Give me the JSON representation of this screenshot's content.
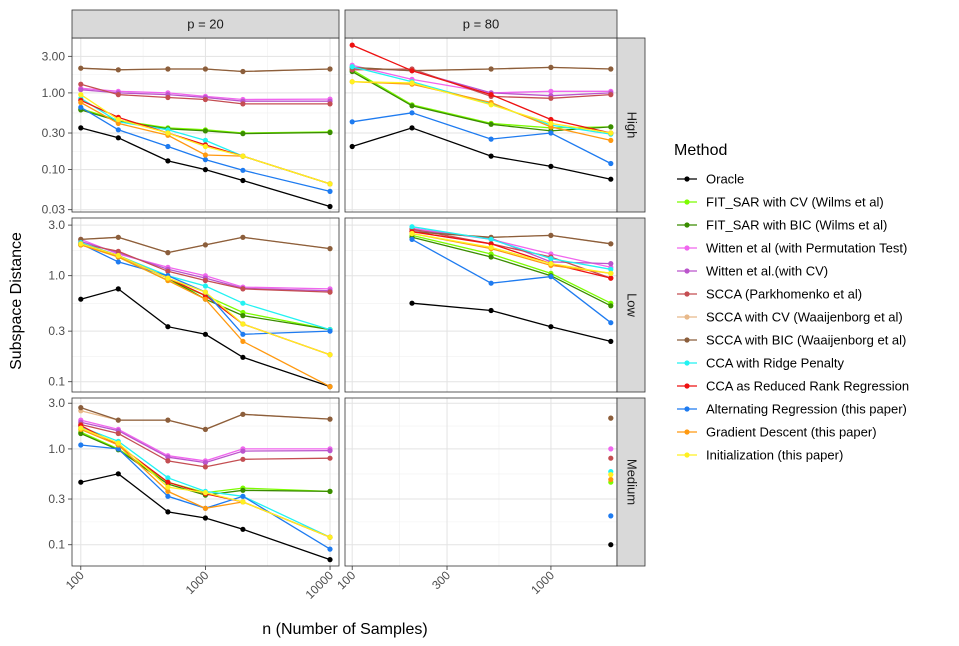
{
  "chart_data": {
    "type": "line",
    "xlabel": "n (Number of Samples)",
    "ylabel": "Subspace Distance",
    "x_scale": "log",
    "y_scale": "log",
    "legend_title": "Method",
    "legend_position": "right",
    "grid": true,
    "column_labels": [
      "p = 20",
      "p = 80"
    ],
    "row_labels": [
      "High",
      "Low",
      "Medium"
    ],
    "methods": [
      {
        "name": "Oracle",
        "color": "#000000"
      },
      {
        "name": "FIT_SAR with CV (Wilms et al)",
        "color": "#7CFC00"
      },
      {
        "name": "FIT_SAR with BIC (Wilms et al)",
        "color": "#3A8C00"
      },
      {
        "name": "Witten et al (with Permutation Test)",
        "color": "#F066EE"
      },
      {
        "name": "Witten et al.(with CV)",
        "color": "#BB55CC"
      },
      {
        "name": "SCCA (Parkhomenko et al)",
        "color": "#C44E52"
      },
      {
        "name": "SCCA with CV (Waaijenborg et al)",
        "color": "#E8B98A"
      },
      {
        "name": "SCCA with BIC (Waaijenborg et al)",
        "color": "#8B5E3C"
      },
      {
        "name": "CCA with Ridge Penalty",
        "color": "#22F2F2"
      },
      {
        "name": "CCA as Reduced Rank Regression",
        "color": "#EE1111"
      },
      {
        "name": "Alternating Regression (this paper)",
        "color": "#1E7BF0"
      },
      {
        "name": "Gradient Descent (this paper)",
        "color": "#FF9910"
      },
      {
        "name": "Initialization (this paper)",
        "color": "#FFF020"
      }
    ],
    "columns": [
      {
        "xlim": [
          85,
          11800
        ],
        "xticks": [
          100,
          1000,
          10000
        ],
        "xtick_labels": [
          "100",
          "1000",
          "10000"
        ]
      },
      {
        "xlim": [
          92,
          2150
        ],
        "xticks": [
          100,
          300,
          1000
        ],
        "xtick_labels": [
          "100",
          "300",
          "1000"
        ]
      }
    ],
    "rows": [
      {
        "ylim": [
          0.028,
          5.2
        ],
        "yticks": [
          0.03,
          0.1,
          0.3,
          1.0,
          3.0
        ],
        "ytick_labels": [
          "0.03",
          "0.10",
          "0.30",
          "1.00",
          "3.00"
        ]
      },
      {
        "ylim": [
          0.08,
          3.5
        ],
        "yticks": [
          0.1,
          0.3,
          1.0,
          3.0
        ],
        "ytick_labels": [
          "0.1",
          "0.3",
          "1.0",
          "3.0"
        ]
      },
      {
        "ylim": [
          0.06,
          3.4
        ],
        "yticks": [
          0.1,
          0.3,
          1.0,
          3.0
        ],
        "ytick_labels": [
          "0.1",
          "0.3",
          "1.0",
          "3.0"
        ]
      }
    ],
    "panels": [
      {
        "col": 0,
        "row": 0,
        "x": [
          100,
          200,
          500,
          1000,
          2000,
          10000
        ],
        "series": [
          {
            "method": 0,
            "values": [
              0.35,
              0.26,
              0.13,
              0.1,
              0.072,
              0.033
            ]
          },
          {
            "method": 1,
            "values": [
              0.62,
              0.44,
              0.35,
              0.33,
              0.3,
              0.31
            ]
          },
          {
            "method": 2,
            "values": [
              0.6,
              0.43,
              0.34,
              0.32,
              0.295,
              0.305
            ]
          },
          {
            "method": 3,
            "values": [
              1.15,
              1.05,
              1.0,
              0.9,
              0.82,
              0.83
            ]
          },
          {
            "method": 4,
            "values": [
              1.1,
              1.0,
              0.95,
              0.87,
              0.78,
              0.78
            ]
          },
          {
            "method": 5,
            "values": [
              1.3,
              0.95,
              0.87,
              0.82,
              0.72,
              0.72
            ]
          },
          {
            "method": 6,
            "values": [
              2.1,
              2.0,
              2.05,
              2.05,
              1.9,
              2.05
            ]
          },
          {
            "method": 7,
            "values": [
              2.1,
              2.0,
              2.05,
              2.05,
              1.9,
              2.05
            ]
          },
          {
            "method": 8,
            "values": [
              0.85,
              0.42,
              0.33,
              0.24,
              0.15,
              0.065
            ]
          },
          {
            "method": 9,
            "values": [
              0.8,
              0.48,
              0.3,
              0.21,
              0.15,
              0.065
            ]
          },
          {
            "method": 10,
            "values": [
              0.65,
              0.33,
              0.2,
              0.135,
              0.098,
              0.052
            ]
          },
          {
            "method": 11,
            "values": [
              0.75,
              0.4,
              0.28,
              0.155,
              0.15,
              0.065
            ]
          },
          {
            "method": 12,
            "values": [
              0.95,
              0.45,
              0.3,
              0.2,
              0.15,
              0.065
            ]
          }
        ]
      },
      {
        "col": 1,
        "row": 0,
        "x": [
          100,
          200,
          500,
          1000,
          2000
        ],
        "series": [
          {
            "method": 0,
            "values": [
              0.2,
              0.35,
              0.15,
              0.11,
              0.075
            ]
          },
          {
            "method": 1,
            "values": [
              2.0,
              0.7,
              0.4,
              0.35,
              0.36
            ]
          },
          {
            "method": 2,
            "values": [
              1.9,
              0.68,
              0.39,
              0.32,
              0.36
            ]
          },
          {
            "method": 3,
            "values": [
              2.3,
              1.5,
              1.0,
              1.05,
              1.05
            ]
          },
          {
            "method": 4,
            "values": [
              2.1,
              1.95,
              1.0,
              0.92,
              1.0
            ]
          },
          {
            "method": 5,
            "values": [
              2.0,
              2.05,
              0.9,
              0.85,
              0.95
            ]
          },
          {
            "method": 6,
            "values": [
              2.15,
              1.95,
              2.05,
              2.15,
              2.05
            ]
          },
          {
            "method": 7,
            "values": [
              2.15,
              1.95,
              2.05,
              2.15,
              2.05
            ]
          },
          {
            "method": 8,
            "values": [
              2.2,
              1.4,
              0.72,
              0.38,
              0.29
            ]
          },
          {
            "method": 9,
            "values": [
              4.2,
              1.95,
              0.95,
              0.45,
              0.3
            ]
          },
          {
            "method": 10,
            "values": [
              0.42,
              0.55,
              0.25,
              0.3,
              0.12
            ]
          },
          {
            "method": 11,
            "values": [
              1.4,
              1.3,
              0.75,
              0.36,
              0.24
            ]
          },
          {
            "method": 12,
            "values": [
              1.4,
              1.35,
              0.7,
              0.4,
              0.3
            ]
          }
        ]
      },
      {
        "col": 0,
        "row": 1,
        "x": [
          100,
          200,
          500,
          1000,
          2000,
          10000
        ],
        "series": [
          {
            "method": 0,
            "values": [
              0.6,
              0.75,
              0.33,
              0.28,
              0.17,
              0.09
            ]
          },
          {
            "method": 1,
            "values": [
              2.0,
              1.5,
              0.9,
              0.65,
              0.45,
              0.31
            ]
          },
          {
            "method": 2,
            "values": [
              1.95,
              1.55,
              0.95,
              0.6,
              0.42,
              0.31
            ]
          },
          {
            "method": 3,
            "values": [
              2.2,
              1.6,
              1.2,
              1.0,
              0.78,
              0.75
            ]
          },
          {
            "method": 4,
            "values": [
              2.1,
              1.65,
              1.15,
              0.95,
              0.76,
              0.72
            ]
          },
          {
            "method": 5,
            "values": [
              2.0,
              1.7,
              1.1,
              0.9,
              0.75,
              0.7
            ]
          },
          {
            "method": 6,
            "values": [
              2.2,
              2.3,
              1.65,
              1.95,
              2.3,
              1.8
            ]
          },
          {
            "method": 7,
            "values": [
              2.2,
              2.3,
              1.65,
              1.95,
              2.3,
              1.8
            ]
          },
          {
            "method": 8,
            "values": [
              2.05,
              1.55,
              1.0,
              0.8,
              0.55,
              0.31
            ]
          },
          {
            "method": 9,
            "values": [
              2.0,
              1.55,
              0.95,
              0.65,
              0.35,
              0.18
            ]
          },
          {
            "method": 10,
            "values": [
              2.0,
              1.35,
              1.0,
              0.7,
              0.28,
              0.3
            ]
          },
          {
            "method": 11,
            "values": [
              1.95,
              1.5,
              0.9,
              0.6,
              0.24,
              0.09
            ]
          },
          {
            "method": 12,
            "values": [
              2.0,
              1.55,
              0.95,
              0.7,
              0.35,
              0.18
            ]
          }
        ]
      },
      {
        "col": 1,
        "row": 1,
        "x": [
          200,
          500,
          1000,
          2000
        ],
        "series": [
          {
            "method": 0,
            "values": [
              0.55,
              0.47,
              0.33,
              0.24
            ]
          },
          {
            "method": 1,
            "values": [
              2.4,
              1.6,
              1.05,
              0.55
            ]
          },
          {
            "method": 2,
            "values": [
              2.3,
              1.5,
              1.0,
              0.52
            ]
          },
          {
            "method": 3,
            "values": [
              2.8,
              2.2,
              1.6,
              1.2
            ]
          },
          {
            "method": 4,
            "values": [
              2.7,
              2.25,
              1.35,
              1.3
            ]
          },
          {
            "method": 5,
            "values": [
              2.75,
              2.0,
              1.5,
              0.95
            ]
          },
          {
            "method": 6,
            "values": [
              2.6,
              2.3,
              2.4,
              2.0
            ]
          },
          {
            "method": 7,
            "values": [
              2.6,
              2.3,
              2.4,
              2.0
            ]
          },
          {
            "method": 8,
            "values": [
              2.9,
              2.2,
              1.45,
              1.15
            ]
          },
          {
            "method": 9,
            "values": [
              2.6,
              2.0,
              1.3,
              0.95
            ]
          },
          {
            "method": 10,
            "values": [
              2.2,
              0.85,
              0.98,
              0.36
            ]
          },
          {
            "method": 11,
            "values": [
              2.5,
              1.8,
              1.25,
              1.05
            ]
          },
          {
            "method": 12,
            "values": [
              2.5,
              1.85,
              1.3,
              1.05
            ]
          }
        ]
      },
      {
        "col": 0,
        "row": 2,
        "x": [
          100,
          200,
          500,
          1000,
          2000,
          10000
        ],
        "series": [
          {
            "method": 0,
            "values": [
              0.45,
              0.55,
              0.22,
              0.19,
              0.145,
              0.07
            ]
          },
          {
            "method": 1,
            "values": [
              1.5,
              1.0,
              0.45,
              0.35,
              0.39,
              0.36
            ]
          },
          {
            "method": 2,
            "values": [
              1.45,
              0.98,
              0.43,
              0.33,
              0.37,
              0.36
            ]
          },
          {
            "method": 3,
            "values": [
              2.0,
              1.6,
              0.85,
              0.75,
              1.0,
              1.0
            ]
          },
          {
            "method": 4,
            "values": [
              1.9,
              1.55,
              0.82,
              0.72,
              0.95,
              0.96
            ]
          },
          {
            "method": 5,
            "values": [
              1.8,
              1.45,
              0.75,
              0.65,
              0.78,
              0.8
            ]
          },
          {
            "method": 6,
            "values": [
              2.5,
              2.0,
              2.0,
              1.6,
              2.3,
              2.05
            ]
          },
          {
            "method": 7,
            "values": [
              2.7,
              2.0,
              2.0,
              1.6,
              2.3,
              2.05
            ]
          },
          {
            "method": 8,
            "values": [
              1.7,
              1.2,
              0.5,
              0.36,
              0.32,
              0.12
            ]
          },
          {
            "method": 9,
            "values": [
              1.75,
              1.1,
              0.45,
              0.34,
              0.28,
              0.12
            ]
          },
          {
            "method": 10,
            "values": [
              1.1,
              1.0,
              0.32,
              0.24,
              0.32,
              0.09
            ]
          },
          {
            "method": 11,
            "values": [
              1.6,
              1.1,
              0.36,
              0.24,
              0.28,
              0.12
            ]
          },
          {
            "method": 12,
            "values": [
              1.65,
              1.15,
              0.4,
              0.35,
              0.28,
              0.12
            ]
          }
        ]
      },
      {
        "col": 1,
        "row": 2,
        "x": [
          2000
        ],
        "series": [
          {
            "method": 0,
            "values": [
              0.1
            ]
          },
          {
            "method": 1,
            "values": [
              0.45
            ]
          },
          {
            "method": 3,
            "values": [
              1.0
            ]
          },
          {
            "method": 5,
            "values": [
              0.8
            ]
          },
          {
            "method": 6,
            "values": [
              2.1
            ]
          },
          {
            "method": 7,
            "values": [
              2.1
            ]
          },
          {
            "method": 8,
            "values": [
              0.58
            ]
          },
          {
            "method": 10,
            "values": [
              0.2
            ]
          },
          {
            "method": 11,
            "values": [
              0.48
            ]
          },
          {
            "method": 12,
            "values": [
              0.54
            ]
          }
        ]
      }
    ]
  }
}
